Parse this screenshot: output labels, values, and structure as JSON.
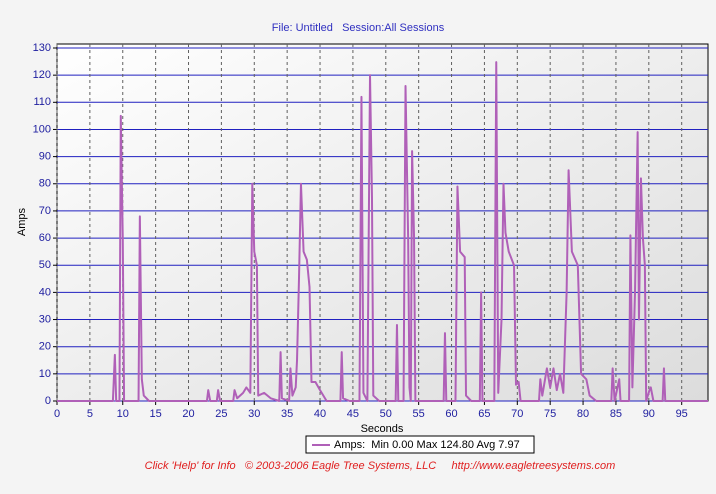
{
  "chart_data": {
    "type": "line",
    "title": "File: Untitled   Session:All Sessions",
    "x_label": "Seconds",
    "y_label": "Amps",
    "footer": "Click 'Help' for Info   © 2003-2006 Eagle Tree Systems, LLC     http://www.eagletreesystems.com",
    "grid": true,
    "legend": "bottom",
    "xlim": [
      0,
      99
    ],
    "ylim": [
      0,
      130
    ],
    "xticks": [
      0,
      5,
      10,
      15,
      20,
      25,
      30,
      35,
      40,
      45,
      50,
      55,
      60,
      65,
      70,
      75,
      80,
      85,
      90,
      95
    ],
    "yticks": [
      0,
      10,
      20,
      30,
      40,
      50,
      60,
      70,
      80,
      90,
      100,
      110,
      120,
      130
    ],
    "x": [
      0,
      8.5,
      8.8,
      9.0,
      9.5,
      9.7,
      10.0,
      10.2,
      12.4,
      12.6,
      12.9,
      13.2,
      14,
      22.8,
      23,
      23.3,
      24.3,
      24.5,
      24.8,
      26.8,
      27,
      27.4,
      28.3,
      28.8,
      29.4,
      29.7,
      30.0,
      30.4,
      30.6,
      31.5,
      32.5,
      33.8,
      34,
      34.2,
      35.3,
      35.5,
      35.8,
      36.3,
      36.5,
      36.8,
      37.1,
      37.5,
      38.0,
      38.4,
      38.7,
      39.3,
      40,
      41,
      43.1,
      43.3,
      43.5,
      44.5,
      46.0,
      46.3,
      46.6,
      47.2,
      47.6,
      47.9,
      48.1,
      49,
      51.5,
      51.7,
      51.9,
      52.7,
      53.0,
      53.4,
      53.6,
      53.8,
      54.0,
      54.3,
      54.5,
      58.8,
      59,
      59.2,
      60.6,
      60.9,
      61.3,
      62.0,
      62.2,
      63,
      64.3,
      64.5,
      64.7,
      66.5,
      66.8,
      67.1,
      67.6,
      67.9,
      68.2,
      68.7,
      69.5,
      69.8,
      70.2,
      70.5,
      73.3,
      73.5,
      73.8,
      74.5,
      75,
      75.5,
      76,
      76.5,
      77,
      77.5,
      77.8,
      78.3,
      79.2,
      79.7,
      80.5,
      81,
      82,
      84.3,
      84.5,
      84.8,
      85.5,
      85.7,
      87,
      87.2,
      87.5,
      87.9,
      88.3,
      88.5,
      88.8,
      89.1,
      89.4,
      89.6,
      90.1,
      90.3,
      90.7,
      92.1,
      92.3,
      92.5,
      99
    ],
    "series": [
      {
        "name": "Amps:  Min 0.00 Max 124.80 Avg 7.97",
        "color": "#b060b8",
        "values": [
          0,
          0,
          17,
          0,
          0,
          105,
          60,
          0,
          0,
          68,
          8,
          2,
          0,
          0,
          4,
          0,
          0,
          4,
          0,
          0,
          4,
          1,
          3,
          5,
          3,
          80,
          55,
          50,
          2,
          3,
          1,
          0,
          18,
          1,
          0,
          12,
          2,
          5,
          15,
          45,
          80,
          55,
          52,
          42,
          7,
          7,
          4,
          0,
          0,
          18,
          1,
          0,
          0,
          112,
          3,
          0,
          120,
          75,
          2,
          0,
          0,
          28,
          0,
          0,
          116,
          60,
          5,
          0,
          92,
          60,
          0,
          0,
          25,
          0,
          0,
          79,
          55,
          53,
          2,
          0,
          0,
          40,
          0,
          0,
          124.8,
          3,
          30,
          80,
          62,
          55,
          50,
          6,
          7,
          0,
          0,
          8,
          2,
          12,
          5,
          12,
          4,
          10,
          3,
          40,
          85,
          55,
          50,
          10,
          8,
          2,
          0,
          0,
          12,
          0,
          8,
          0,
          0,
          61,
          5,
          40,
          99,
          30,
          82,
          60,
          50,
          0,
          4,
          5,
          0,
          0,
          12,
          0,
          0
        ]
      }
    ]
  }
}
